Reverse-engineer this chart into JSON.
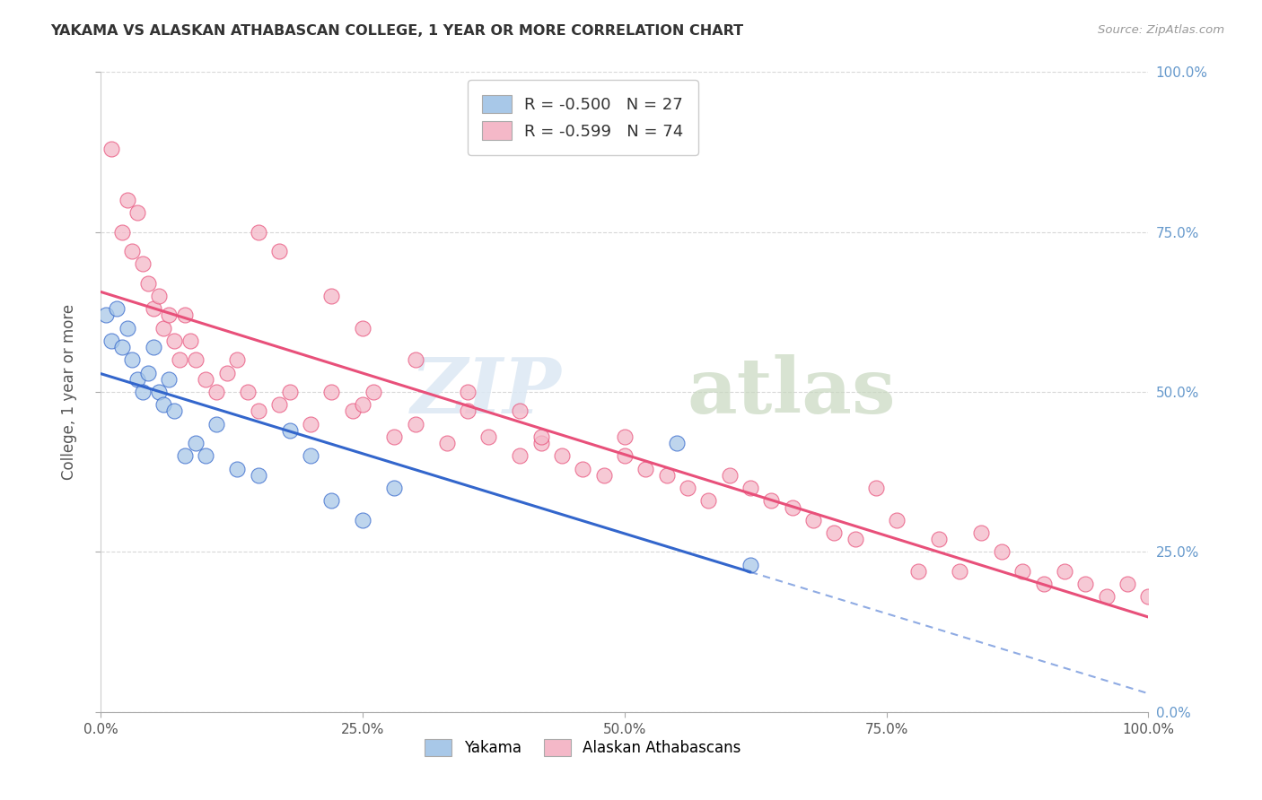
{
  "title": "YAKAMA VS ALASKAN ATHABASCAN COLLEGE, 1 YEAR OR MORE CORRELATION CHART",
  "source": "Source: ZipAtlas.com",
  "ylabel": "College, 1 year or more",
  "legend_label1": "Yakama",
  "legend_label2": "Alaskan Athabascans",
  "r1": "-0.500",
  "n1": "27",
  "r2": "-0.599",
  "n2": "74",
  "watermark_zip": "ZIP",
  "watermark_atlas": "atlas",
  "color_blue": "#a8c8e8",
  "color_pink": "#f4b8c8",
  "color_blue_line": "#3366cc",
  "color_pink_line": "#e8507a",
  "background_color": "#ffffff",
  "grid_color": "#d8d8d8",
  "blue_points_x": [
    0.5,
    1.0,
    1.5,
    2.0,
    2.5,
    3.0,
    3.5,
    4.0,
    4.5,
    5.0,
    5.5,
    6.0,
    6.5,
    7.0,
    8.0,
    9.0,
    10.0,
    11.0,
    13.0,
    15.0,
    18.0,
    20.0,
    22.0,
    25.0,
    28.0,
    55.0,
    62.0
  ],
  "blue_points_y": [
    62.0,
    58.0,
    63.0,
    57.0,
    60.0,
    55.0,
    52.0,
    50.0,
    53.0,
    57.0,
    50.0,
    48.0,
    52.0,
    47.0,
    40.0,
    42.0,
    40.0,
    45.0,
    38.0,
    37.0,
    44.0,
    40.0,
    33.0,
    30.0,
    35.0,
    42.0,
    23.0
  ],
  "pink_points_x": [
    1.0,
    2.0,
    2.5,
    3.0,
    3.5,
    4.0,
    4.5,
    5.0,
    5.5,
    6.0,
    6.5,
    7.0,
    7.5,
    8.0,
    8.5,
    9.0,
    10.0,
    11.0,
    12.0,
    13.0,
    14.0,
    15.0,
    17.0,
    18.0,
    20.0,
    22.0,
    24.0,
    25.0,
    26.0,
    28.0,
    30.0,
    33.0,
    35.0,
    37.0,
    40.0,
    42.0,
    44.0,
    46.0,
    48.0,
    50.0,
    52.0,
    54.0,
    56.0,
    58.0,
    60.0,
    62.0,
    64.0,
    66.0,
    68.0,
    70.0,
    72.0,
    74.0,
    76.0,
    78.0,
    80.0,
    82.0,
    84.0,
    86.0,
    88.0,
    90.0,
    92.0,
    94.0,
    96.0,
    98.0,
    100.0,
    15.0,
    17.0,
    22.0,
    25.0,
    30.0,
    35.0,
    40.0,
    42.0,
    50.0
  ],
  "pink_points_y": [
    88.0,
    75.0,
    80.0,
    72.0,
    78.0,
    70.0,
    67.0,
    63.0,
    65.0,
    60.0,
    62.0,
    58.0,
    55.0,
    62.0,
    58.0,
    55.0,
    52.0,
    50.0,
    53.0,
    55.0,
    50.0,
    47.0,
    48.0,
    50.0,
    45.0,
    50.0,
    47.0,
    48.0,
    50.0,
    43.0,
    45.0,
    42.0,
    47.0,
    43.0,
    40.0,
    42.0,
    40.0,
    38.0,
    37.0,
    40.0,
    38.0,
    37.0,
    35.0,
    33.0,
    37.0,
    35.0,
    33.0,
    32.0,
    30.0,
    28.0,
    27.0,
    35.0,
    30.0,
    22.0,
    27.0,
    22.0,
    28.0,
    25.0,
    22.0,
    20.0,
    22.0,
    20.0,
    18.0,
    20.0,
    18.0,
    75.0,
    72.0,
    65.0,
    60.0,
    55.0,
    50.0,
    47.0,
    43.0,
    43.0
  ],
  "xlim": [
    0,
    100
  ],
  "ylim": [
    0,
    100
  ],
  "xticks": [
    0,
    25,
    50,
    75,
    100
  ],
  "yticks": [
    0,
    25,
    50,
    75,
    100
  ],
  "xtick_labels": [
    "0.0%",
    "25.0%",
    "50.0%",
    "75.0%",
    "100.0%"
  ],
  "right_ytick_labels": [
    "0.0%",
    "25.0%",
    "50.0%",
    "75.0%",
    "100.0%"
  ],
  "right_label_color": "#6699cc"
}
